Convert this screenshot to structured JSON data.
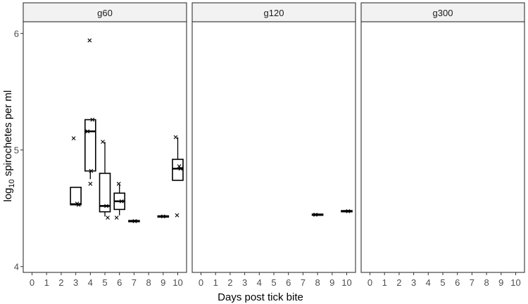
{
  "chart_data": {
    "type": "boxplot",
    "xlabel": "Days post tick bite",
    "ylabel_main": "log",
    "ylabel_sub": "10",
    "ylabel_rest": " spirochetes per ml",
    "x_categories": [
      "0",
      "1",
      "2",
      "3",
      "4",
      "5",
      "6",
      "7",
      "8",
      "9",
      "10"
    ],
    "ylim": [
      3.95,
      6.1
    ],
    "yticks": [
      4,
      5,
      6
    ],
    "panels": [
      {
        "name": "g60",
        "boxes": [
          {
            "x": 3,
            "q1": 4.53,
            "median": 4.535,
            "q3": 4.68,
            "lower": 4.53,
            "upper": 4.68
          },
          {
            "x": 4,
            "q1": 4.82,
            "median": 5.16,
            "q3": 5.26,
            "lower": 4.75,
            "upper": 5.26
          },
          {
            "x": 5,
            "q1": 4.47,
            "median": 4.52,
            "q3": 4.8,
            "lower": 4.43,
            "upper": 5.07
          },
          {
            "x": 6,
            "q1": 4.49,
            "median": 4.56,
            "q3": 4.63,
            "lower": 4.44,
            "upper": 4.7
          },
          {
            "x": 7,
            "q1": 4.385,
            "median": 4.39,
            "q3": 4.395,
            "lower": 4.385,
            "upper": 4.395
          },
          {
            "x": 9,
            "q1": 4.425,
            "median": 4.43,
            "q3": 4.435,
            "lower": 4.425,
            "upper": 4.435
          },
          {
            "x": 10,
            "q1": 4.74,
            "median": 4.84,
            "q3": 4.92,
            "lower": 4.74,
            "upper": 5.11
          }
        ],
        "points": [
          {
            "x": 3,
            "y": 5.1
          },
          {
            "x": 3,
            "y": 4.54
          },
          {
            "x": 3,
            "y": 4.53
          },
          {
            "x": 4,
            "y": 5.94
          },
          {
            "x": 4,
            "y": 5.26
          },
          {
            "x": 4,
            "y": 5.16
          },
          {
            "x": 4,
            "y": 4.82
          },
          {
            "x": 4,
            "y": 4.71
          },
          {
            "x": 5,
            "y": 5.07
          },
          {
            "x": 5,
            "y": 4.52
          },
          {
            "x": 5,
            "y": 4.42
          },
          {
            "x": 6,
            "y": 4.71
          },
          {
            "x": 6,
            "y": 4.56
          },
          {
            "x": 6,
            "y": 4.42
          },
          {
            "x": 7,
            "y": 4.39
          },
          {
            "x": 9,
            "y": 4.43
          },
          {
            "x": 10,
            "y": 5.11
          },
          {
            "x": 10,
            "y": 4.86
          },
          {
            "x": 10,
            "y": 4.84
          },
          {
            "x": 10,
            "y": 4.44
          }
        ]
      },
      {
        "name": "g120",
        "boxes": [
          {
            "x": 8,
            "q1": 4.44,
            "median": 4.445,
            "q3": 4.45,
            "lower": 4.44,
            "upper": 4.45
          },
          {
            "x": 10,
            "q1": 4.47,
            "median": 4.475,
            "q3": 4.48,
            "lower": 4.47,
            "upper": 4.48
          }
        ],
        "points": [
          {
            "x": 8,
            "y": 4.445
          },
          {
            "x": 10,
            "y": 4.475
          }
        ]
      },
      {
        "name": "g300",
        "boxes": [],
        "points": []
      }
    ]
  }
}
